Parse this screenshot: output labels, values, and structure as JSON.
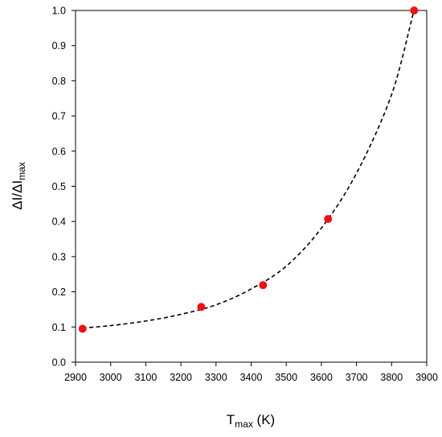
{
  "chart_data": {
    "type": "scatter",
    "title": "",
    "xlabel": {
      "main": "T",
      "sub": "max",
      "unit": " (K)"
    },
    "ylabel": {
      "main": "ΔI/ΔI",
      "sub": "max"
    },
    "xlim": [
      2900,
      3900
    ],
    "ylim": [
      0.0,
      1.0
    ],
    "x_ticks": [
      2900,
      3000,
      3100,
      3200,
      3300,
      3400,
      3500,
      3600,
      3700,
      3800,
      3900
    ],
    "x_tick_labels": [
      "2900",
      "3000",
      "3100",
      "3200",
      "3300",
      "3400",
      "3500",
      "3600",
      "3700",
      "3800",
      "3900"
    ],
    "y_ticks": [
      0.0,
      0.1,
      0.2,
      0.3,
      0.4,
      0.5,
      0.6,
      0.7,
      0.8,
      0.9,
      1.0
    ],
    "y_tick_labels": [
      "0.0",
      "0.1",
      "0.2",
      "0.3",
      "0.4",
      "0.5",
      "0.6",
      "0.7",
      "0.8",
      "0.9",
      "1.0"
    ],
    "grid": false,
    "legend": "none",
    "series": [
      {
        "kind": "scatter",
        "color": "#ee1111",
        "points": [
          {
            "x": 2920,
            "y": 0.095
          },
          {
            "x": 3258,
            "y": 0.157
          },
          {
            "x": 3434,
            "y": 0.219
          },
          {
            "x": 3619,
            "y": 0.407
          },
          {
            "x": 3864,
            "y": 1.0
          }
        ]
      },
      {
        "kind": "fit-curve",
        "style": "dashed",
        "color": "#000000",
        "points": [
          {
            "x": 2920,
            "y": 0.097
          },
          {
            "x": 3000,
            "y": 0.104
          },
          {
            "x": 3100,
            "y": 0.117
          },
          {
            "x": 3200,
            "y": 0.136
          },
          {
            "x": 3300,
            "y": 0.163
          },
          {
            "x": 3400,
            "y": 0.208
          },
          {
            "x": 3500,
            "y": 0.273
          },
          {
            "x": 3600,
            "y": 0.381
          },
          {
            "x": 3700,
            "y": 0.537
          },
          {
            "x": 3800,
            "y": 0.761
          },
          {
            "x": 3864,
            "y": 1.0
          },
          {
            "x": 3880,
            "y": 1.035
          }
        ]
      }
    ]
  }
}
